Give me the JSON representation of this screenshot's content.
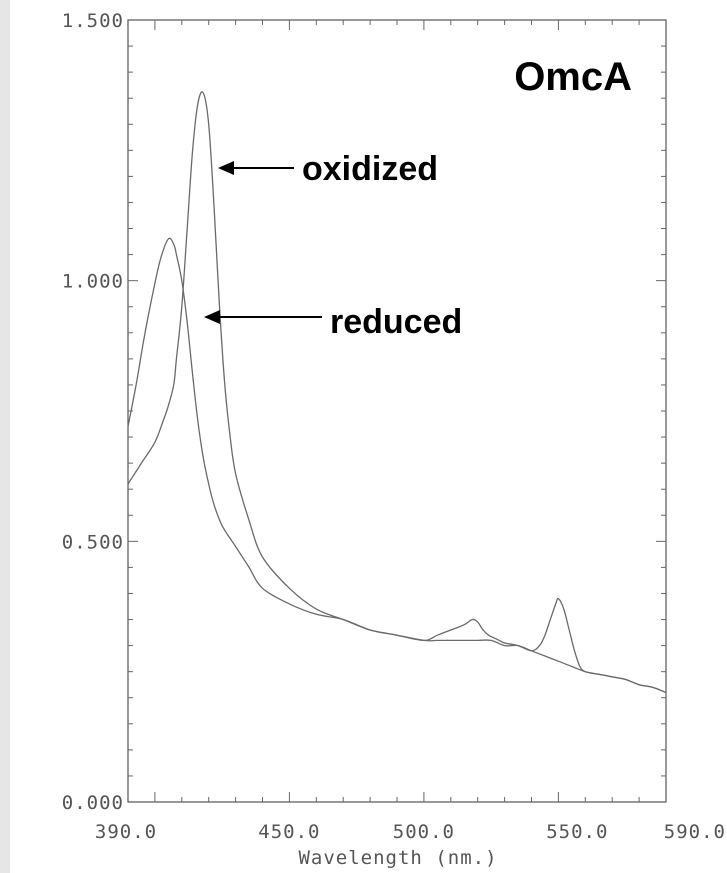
{
  "chart_data": {
    "type": "line",
    "title": "OmcA",
    "xlabel": "Wavelength (nm.)",
    "ylabel": "",
    "xlim": [
      390.0,
      590.0
    ],
    "ylim": [
      0.0,
      1.5
    ],
    "x_ticks": [
      {
        "value": 390.0,
        "label": "390.0"
      },
      {
        "value": 450.0,
        "label": "450.0"
      },
      {
        "value": 500.0,
        "label": "500.0"
      },
      {
        "value": 550.0,
        "label": "550.0"
      },
      {
        "value": 590.0,
        "label": "590.0"
      }
    ],
    "y_ticks": [
      {
        "value": 0.0,
        "label": "0.000"
      },
      {
        "value": 0.5,
        "label": "0.500"
      },
      {
        "value": 1.0,
        "label": "1.000"
      },
      {
        "value": 1.5,
        "label": "1.500"
      }
    ],
    "grid": false,
    "series": [
      {
        "name": "oxidized",
        "x": [
          390,
          395,
          400,
          403,
          405,
          407,
          408,
          410,
          412,
          414,
          416,
          418,
          420,
          422,
          424,
          426,
          428,
          430,
          435,
          440,
          450,
          460,
          470,
          480,
          490,
          500,
          505,
          510,
          515,
          520,
          525,
          530,
          535,
          540,
          545,
          550,
          555,
          560,
          565,
          570,
          575,
          580,
          585,
          590
        ],
        "y": [
          0.61,
          0.65,
          0.69,
          0.73,
          0.76,
          0.8,
          0.85,
          0.95,
          1.1,
          1.25,
          1.34,
          1.36,
          1.3,
          1.14,
          0.95,
          0.8,
          0.7,
          0.63,
          0.54,
          0.47,
          0.41,
          0.37,
          0.35,
          0.33,
          0.32,
          0.31,
          0.31,
          0.31,
          0.31,
          0.31,
          0.31,
          0.3,
          0.3,
          0.29,
          0.28,
          0.27,
          0.26,
          0.25,
          0.245,
          0.24,
          0.235,
          0.225,
          0.22,
          0.21
        ]
      },
      {
        "name": "reduced",
        "x": [
          390,
          393,
          396,
          399,
          402,
          405,
          407,
          408,
          410,
          412,
          414,
          416,
          418,
          420,
          422,
          425,
          430,
          435,
          440,
          450,
          460,
          470,
          480,
          490,
          500,
          505,
          510,
          515,
          518,
          520,
          522,
          524,
          526,
          528,
          530,
          535,
          540,
          543,
          545,
          547,
          549,
          550,
          552,
          554,
          556,
          558,
          560,
          565,
          570,
          575,
          580,
          585,
          590
        ],
        "y": [
          0.72,
          0.8,
          0.89,
          0.97,
          1.04,
          1.08,
          1.07,
          1.05,
          1.0,
          0.92,
          0.82,
          0.73,
          0.66,
          0.61,
          0.57,
          0.53,
          0.49,
          0.45,
          0.41,
          0.38,
          0.36,
          0.35,
          0.33,
          0.32,
          0.31,
          0.32,
          0.33,
          0.34,
          0.35,
          0.345,
          0.33,
          0.32,
          0.315,
          0.31,
          0.305,
          0.3,
          0.29,
          0.3,
          0.32,
          0.35,
          0.38,
          0.39,
          0.37,
          0.33,
          0.29,
          0.26,
          0.25,
          0.245,
          0.24,
          0.235,
          0.225,
          0.22,
          0.21
        ]
      }
    ],
    "annotations": [
      {
        "text": "oxidized",
        "points_to": "oxidized"
      },
      {
        "text": "reduced",
        "points_to": "reduced"
      }
    ],
    "colors": {
      "line": "#6a6a6a",
      "axis": "#555555",
      "text": "#000000"
    }
  }
}
